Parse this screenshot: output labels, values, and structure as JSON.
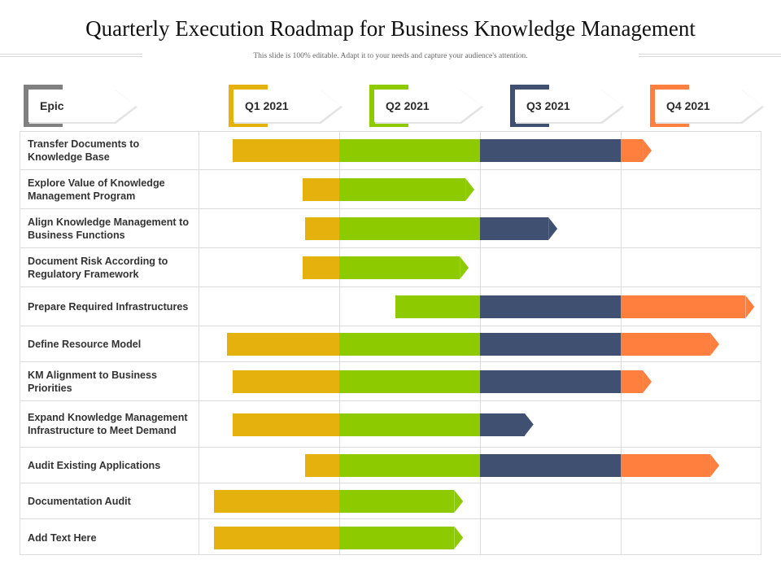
{
  "title": "Quarterly Execution Roadmap for Business Knowledge Management",
  "subtitle": "This slide is 100% editable. Adapt it to your needs and capture your audience's attention.",
  "colors": {
    "Q1 2021": "#E5B10D",
    "Q2 2021": "#8DCB00",
    "Q3 2021": "#3F5070",
    "Q4 2021": "#FF7F3F",
    "epic": "#808080"
  },
  "headers": {
    "epic": "Epic",
    "quarters": [
      "Q1 2021",
      "Q2 2021",
      "Q3 2021",
      "Q4 2021"
    ]
  },
  "chart_data": {
    "type": "gantt",
    "title": "Quarterly Execution Roadmap for Business Knowledge Management",
    "categories": [
      "Q1 2021",
      "Q2 2021",
      "Q3 2021",
      "Q4 2021"
    ],
    "time_axis": "quarters (0 = start of Q1 2021, 4 = end of Q4 2021)",
    "tasks": [
      {
        "epic": "Transfer Documents to Knowledge Base",
        "start": 0.24,
        "end": 3.22
      },
      {
        "epic": "Explore Value of Knowledge Management Program",
        "start": 0.74,
        "end": 1.96
      },
      {
        "epic": "Align Knowledge Management to Business  Functions",
        "start": 0.76,
        "end": 2.55
      },
      {
        "epic": "Document Risk According to Regulatory Framework",
        "start": 0.74,
        "end": 1.92
      },
      {
        "epic": "Prepare Required Infrastructures",
        "start": 1.4,
        "end": 3.95
      },
      {
        "epic": "Define Resource Model",
        "start": 0.2,
        "end": 3.7
      },
      {
        "epic": "KM Alignment to Business Priorities",
        "start": 0.24,
        "end": 3.22
      },
      {
        "epic": "Expand Knowledge Management Infrastructure to Meet Demand",
        "start": 0.24,
        "end": 2.38
      },
      {
        "epic": "Audit Existing Applications",
        "start": 0.76,
        "end": 3.7
      },
      {
        "epic": "Documentation Audit",
        "start": 0.11,
        "end": 1.88
      },
      {
        "epic": "Add Text Here",
        "start": 0.11,
        "end": 1.88
      }
    ]
  }
}
